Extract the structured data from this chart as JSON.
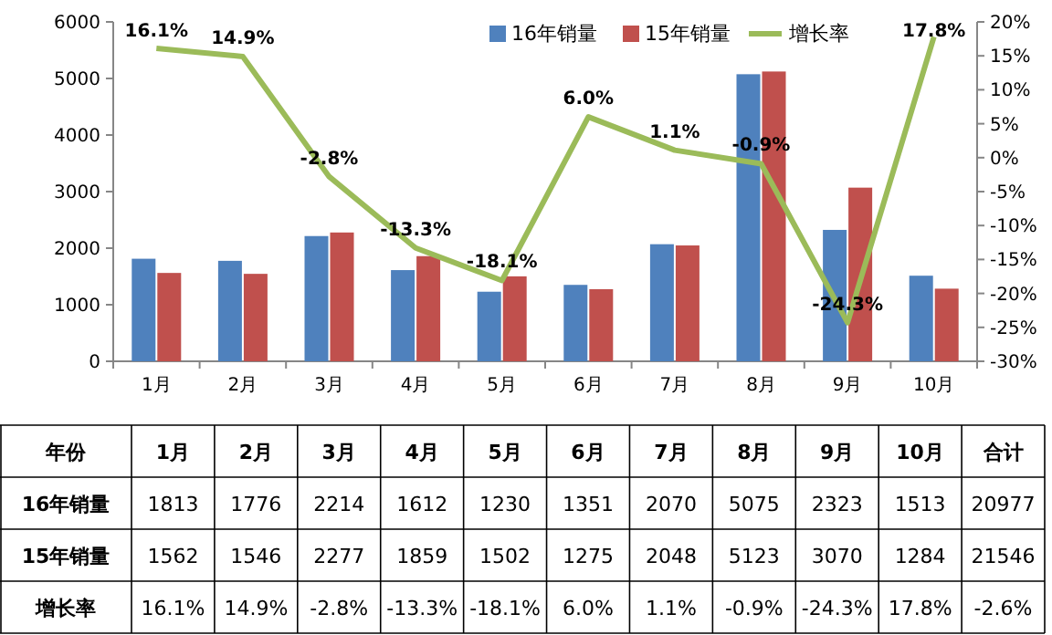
{
  "chart_data": {
    "type": "bar",
    "categories": [
      "1月",
      "2月",
      "3月",
      "4月",
      "5月",
      "6月",
      "7月",
      "8月",
      "9月",
      "10月"
    ],
    "series": [
      {
        "name": "16年销量",
        "color": "#4f81bd",
        "values": [
          1813,
          1776,
          2214,
          1612,
          1230,
          1351,
          2070,
          5075,
          2323,
          1513
        ],
        "value_labels": [
          "1813",
          "1776",
          "2214",
          "1612",
          "1230",
          "1351",
          "2070",
          "5075",
          "2323",
          "1513"
        ]
      },
      {
        "name": "15年销量",
        "color": "#c0504d",
        "values": [
          1562,
          1546,
          2277,
          1859,
          1502,
          1275,
          2048,
          5123,
          3070,
          1284
        ],
        "value_labels": [
          "1562",
          "1546",
          "2277",
          "1859",
          "1502",
          "1275",
          "2048",
          "5123",
          "3070",
          "1284"
        ]
      },
      {
        "name": "增长率",
        "type": "line",
        "axis": "y2",
        "color": "#9bbb59",
        "marker": "none",
        "values": [
          16.1,
          14.9,
          -2.8,
          -13.3,
          -18.1,
          6.0,
          1.1,
          -0.9,
          -24.3,
          17.8
        ],
        "value_labels": [
          "16.1%",
          "14.9%",
          "-2.8%",
          "-13.3%",
          "-18.1%",
          "6.0%",
          "1.1%",
          "-0.9%",
          "-24.3%",
          "17.8%"
        ]
      }
    ],
    "ylim": [
      0,
      6000
    ],
    "yticks": [
      0,
      1000,
      2000,
      3000,
      4000,
      5000,
      6000
    ],
    "y2lim": [
      -30,
      20
    ],
    "y2ticks": [
      {
        "value": -30,
        "label": "-30%"
      },
      {
        "value": -25,
        "label": "-25%"
      },
      {
        "value": -20,
        "label": "-20%"
      },
      {
        "value": -15,
        "label": "-15%"
      },
      {
        "value": -10,
        "label": "-10%"
      },
      {
        "value": -5,
        "label": "-5%"
      },
      {
        "value": 0,
        "label": "0%"
      },
      {
        "value": 5,
        "label": "5%"
      },
      {
        "value": 10,
        "label": "10%"
      },
      {
        "value": 15,
        "label": "15%"
      },
      {
        "value": 20,
        "label": "20%"
      }
    ],
    "legend": "top right",
    "grid": false,
    "annotations": [
      "年份",
      "合计",
      "20977",
      "21546",
      "-2.6%"
    ]
  }
}
